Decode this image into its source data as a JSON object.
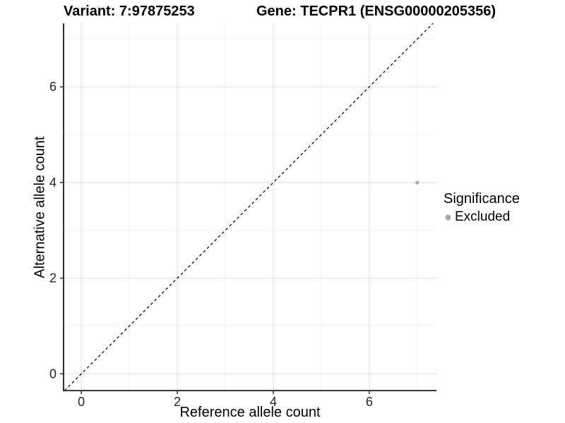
{
  "title_left": "Variant: 7:97875253",
  "title_right": "Gene: TECPR1 (ENSG00000205356)",
  "axes": {
    "x_label": "Reference allele count",
    "y_label": "Alternative allele count"
  },
  "legend": {
    "title": "Significance",
    "items": [
      {
        "label": "Excluded",
        "color": "#a9a9a9"
      }
    ]
  },
  "colors": {
    "point": "#b3b3b3",
    "grid_major": "#e4e4e4",
    "grid_minor": "#f1f1f1",
    "axis_line": "#1a1a1a",
    "tick_mark": "#333333",
    "reference_line": "#000000"
  },
  "chart_data": {
    "type": "scatter",
    "title": "Variant: 7:97875253 / Gene: TECPR1 (ENSG00000205356)",
    "xlabel": "Reference allele count",
    "ylabel": "Alternative allele count",
    "xlim": [
      -0.37,
      7.4
    ],
    "ylim": [
      -0.35,
      7.33
    ],
    "x_ticks": [
      0,
      2,
      4,
      6
    ],
    "y_ticks": [
      0,
      2,
      4,
      6
    ],
    "x_minor_ticks": [
      1,
      3,
      5,
      7
    ],
    "y_minor_ticks": [
      1,
      3,
      5,
      7
    ],
    "grid": true,
    "legend_title": "Significance",
    "legend_position": "right",
    "series": [
      {
        "name": "Excluded",
        "color": "#b3b3b3",
        "points": [
          {
            "x": 7,
            "y": 4
          }
        ]
      }
    ],
    "reference_line": {
      "equation": "y = x",
      "style": "dashed",
      "color": "#000000"
    }
  }
}
